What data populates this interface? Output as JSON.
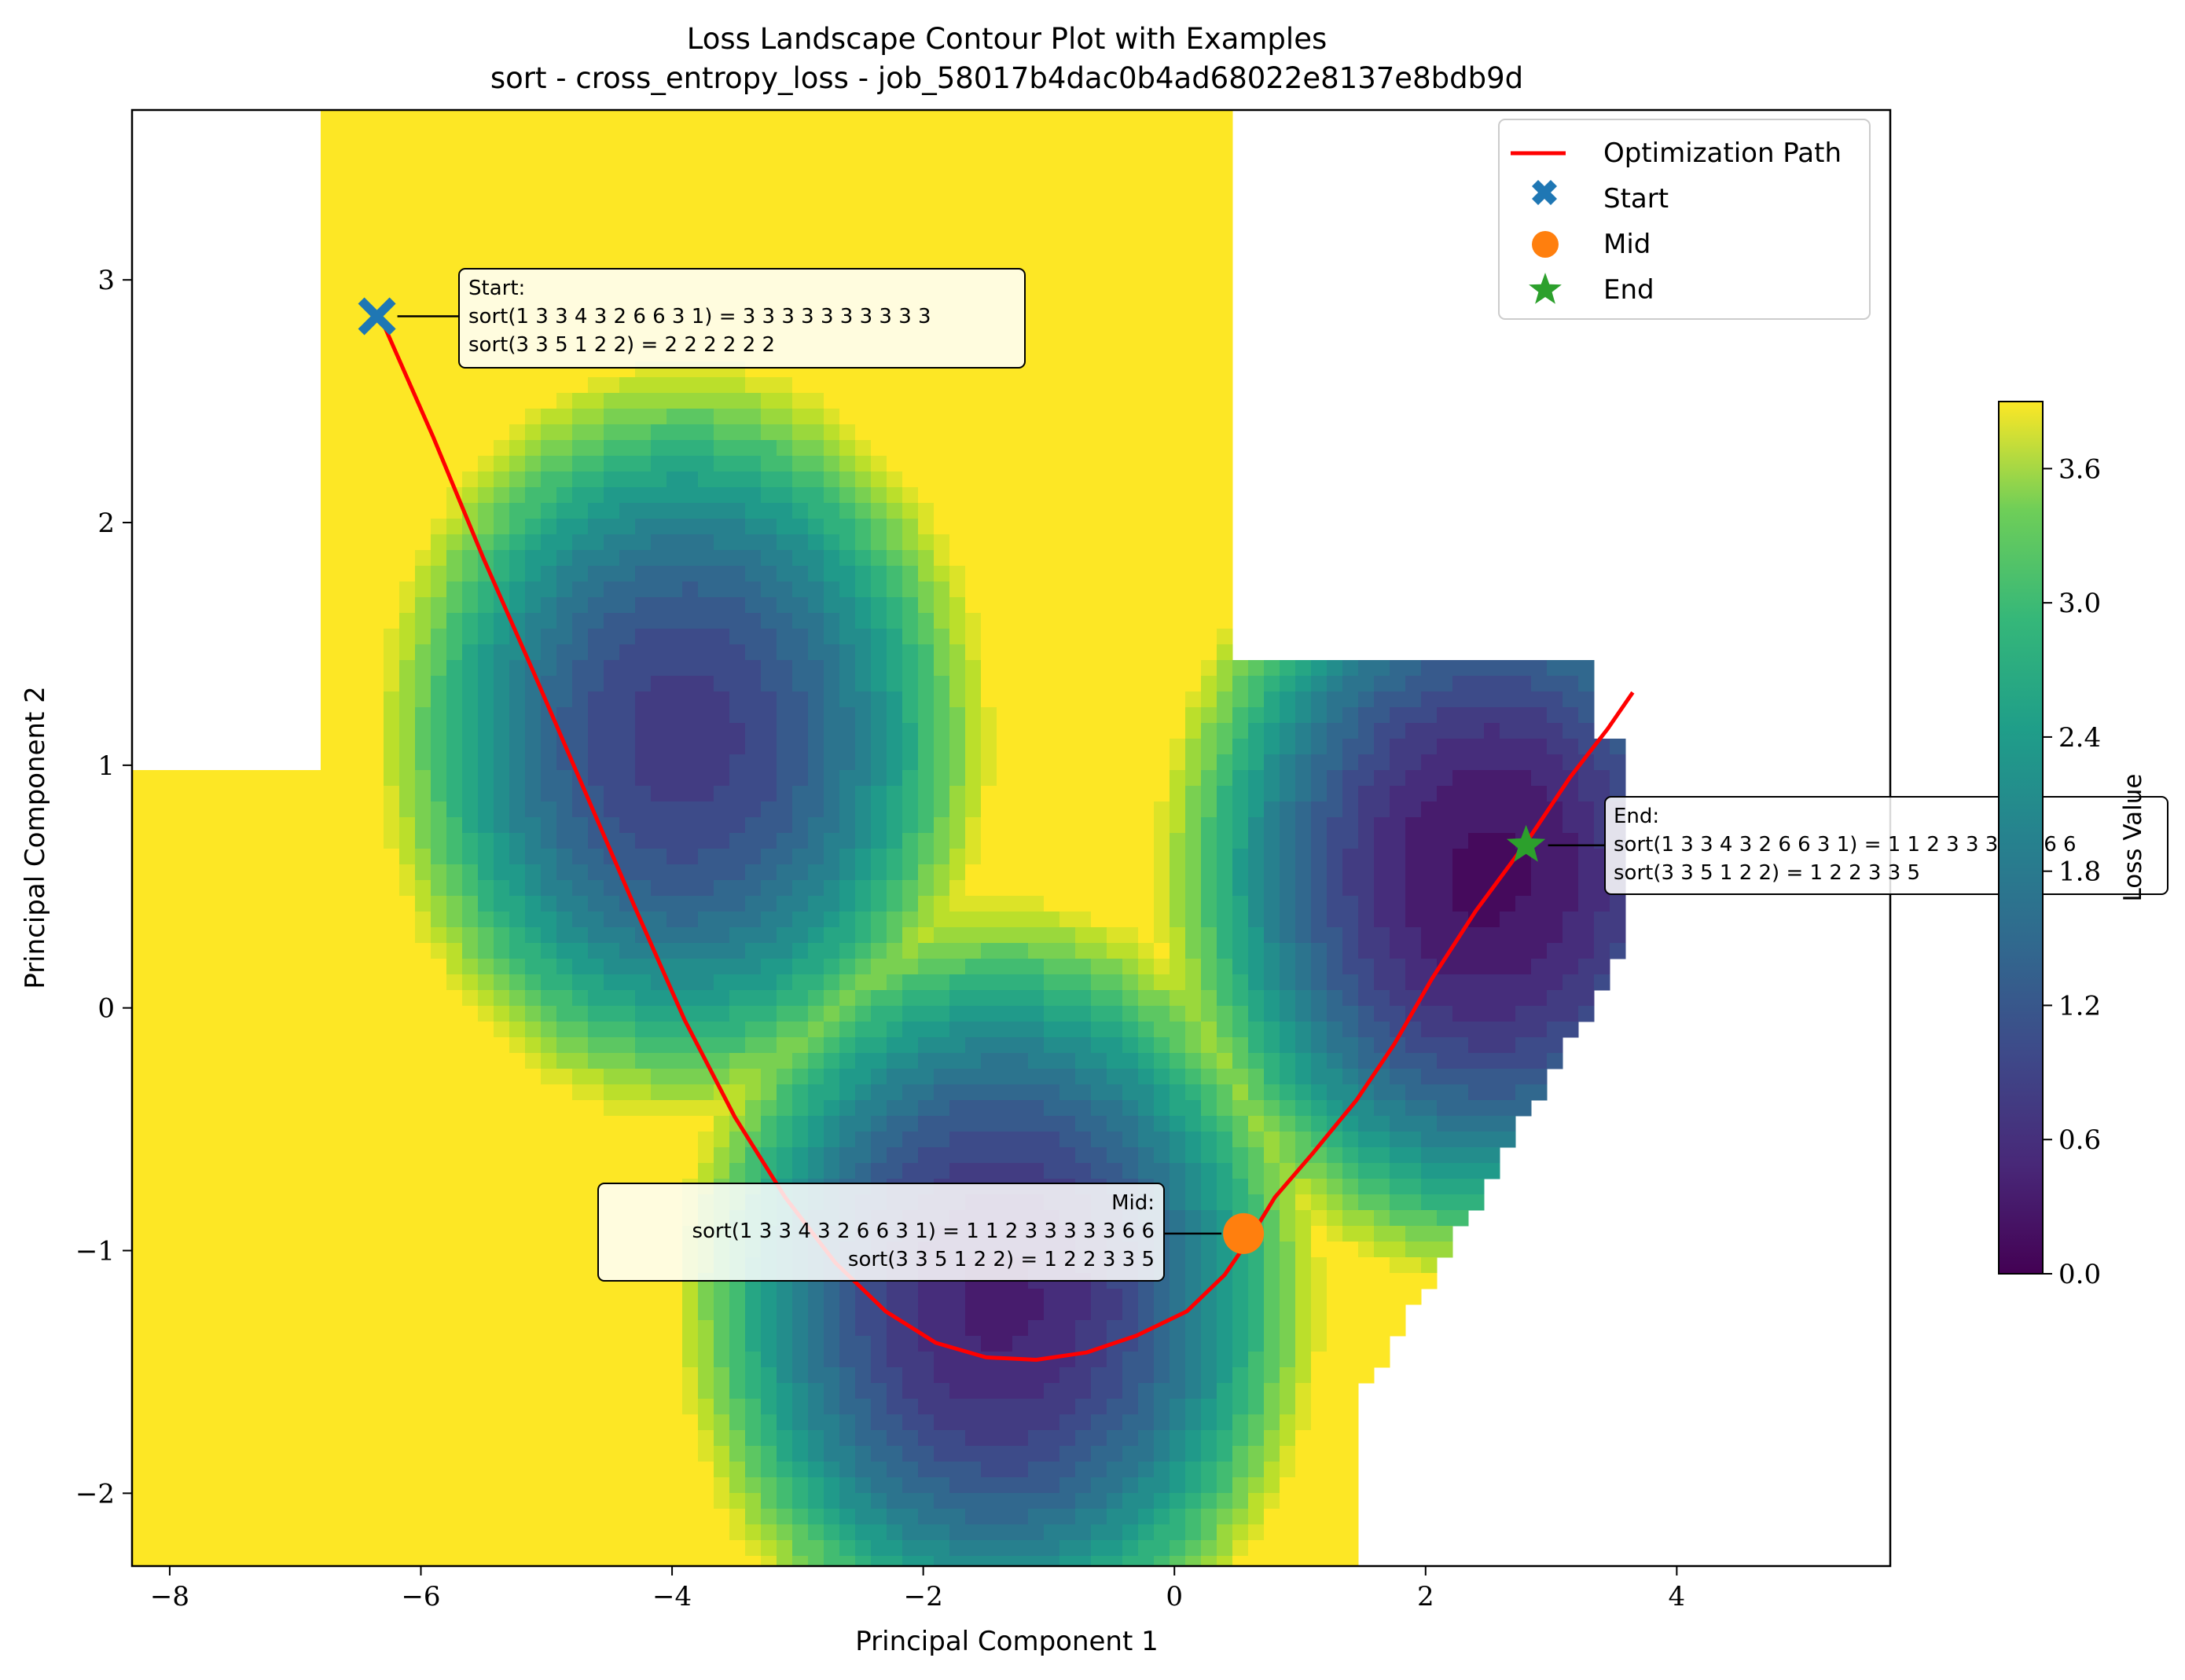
{
  "chart_data": {
    "type": "contour",
    "title": "Loss Landscape Contour Plot with Examples",
    "subtitle": "sort - cross_entropy_loss - job_58017b4dac0b4ad68022e8137e8bdb9d",
    "xlabel": "Principal Component 1",
    "ylabel": "Principal Component 2",
    "xlim": [
      -8.3,
      5.7
    ],
    "ylim": [
      -2.3,
      3.7
    ],
    "xticks": [
      -8,
      -6,
      -4,
      -2,
      0,
      2,
      4
    ],
    "yticks": [
      -2,
      -1,
      0,
      1,
      2,
      3
    ],
    "xtick_labels": [
      "−8",
      "−6",
      "−4",
      "−2",
      "0",
      "2",
      "4"
    ],
    "ytick_labels": [
      "−2",
      "−1",
      "0",
      "1",
      "2",
      "3"
    ],
    "grid": false,
    "legend_position": "top-right",
    "legend": [
      {
        "label": "Optimization Path",
        "marker": "line",
        "color": "#ff0000"
      },
      {
        "label": "Start",
        "marker": "X",
        "color": "#1f77b4"
      },
      {
        "label": "Mid",
        "marker": "circle",
        "color": "#ff7f0e"
      },
      {
        "label": "End",
        "marker": "star",
        "color": "#2ca02c"
      }
    ],
    "colorbar": {
      "label": "Loss Value",
      "colormap": "viridis",
      "range": [
        0.0,
        3.9
      ],
      "ticks": [
        0.0,
        0.6,
        1.2,
        1.8,
        2.4,
        3.0,
        3.6
      ],
      "tick_labels": [
        "0.0",
        "0.6",
        "1.2",
        "1.8",
        "2.4",
        "3.0",
        "3.6"
      ]
    },
    "minima": [
      {
        "x": 2.5,
        "y": 0.55,
        "depth": 0.15
      },
      {
        "x": -1.4,
        "y": -1.2,
        "depth": 0.35
      },
      {
        "x": -3.9,
        "y": 1.1,
        "depth": 0.7
      }
    ],
    "path": [
      [
        -6.3,
        2.82
      ],
      [
        -5.9,
        2.35
      ],
      [
        -5.5,
        1.85
      ],
      [
        -5.1,
        1.38
      ],
      [
        -4.7,
        0.9
      ],
      [
        -4.3,
        0.42
      ],
      [
        -3.9,
        -0.05
      ],
      [
        -3.5,
        -0.45
      ],
      [
        -3.1,
        -0.78
      ],
      [
        -2.7,
        -1.05
      ],
      [
        -2.3,
        -1.25
      ],
      [
        -1.9,
        -1.38
      ],
      [
        -1.5,
        -1.44
      ],
      [
        -1.1,
        -1.45
      ],
      [
        -0.7,
        -1.42
      ],
      [
        -0.3,
        -1.35
      ],
      [
        0.1,
        -1.25
      ],
      [
        0.4,
        -1.1
      ],
      [
        0.6,
        -0.95
      ],
      [
        0.8,
        -0.78
      ],
      [
        1.1,
        -0.6
      ],
      [
        1.45,
        -0.38
      ],
      [
        1.75,
        -0.15
      ],
      [
        2.05,
        0.12
      ],
      [
        2.4,
        0.4
      ],
      [
        2.8,
        0.68
      ],
      [
        3.15,
        0.95
      ],
      [
        3.45,
        1.15
      ],
      [
        3.65,
        1.3
      ]
    ],
    "points": {
      "start": {
        "label": "Start",
        "x": -6.35,
        "y": 2.85
      },
      "mid": {
        "label": "Mid",
        "x": 0.55,
        "y": -0.93
      },
      "end": {
        "label": "End",
        "x": 2.8,
        "y": 0.67
      }
    },
    "annotations": [
      {
        "for": "start",
        "lines": [
          "Start:",
          "sort(1 3 3 4 3 2 6 6 3 1) = 3 3 3 3 3 3 3 3 3 3",
          "sort(3 3 5 1 2 2) = 2 2 2 2 2 2"
        ]
      },
      {
        "for": "mid",
        "lines": [
          "Mid:",
          "sort(1 3 3 4 3 2 6 6 3 1) = 1 1 2 3 3 3 3 3 6 6",
          "sort(3 3 5 1 2 2) = 1 2 2 3 3 5"
        ]
      },
      {
        "for": "end",
        "lines": [
          "End:",
          "sort(1 3 3 4 3 2 6 6 3 1) = 1 1 2 3 3 3 3 4 6 6",
          "sort(3 3 5 1 2 2) = 1 2 2 3 3 5"
        ]
      }
    ]
  }
}
